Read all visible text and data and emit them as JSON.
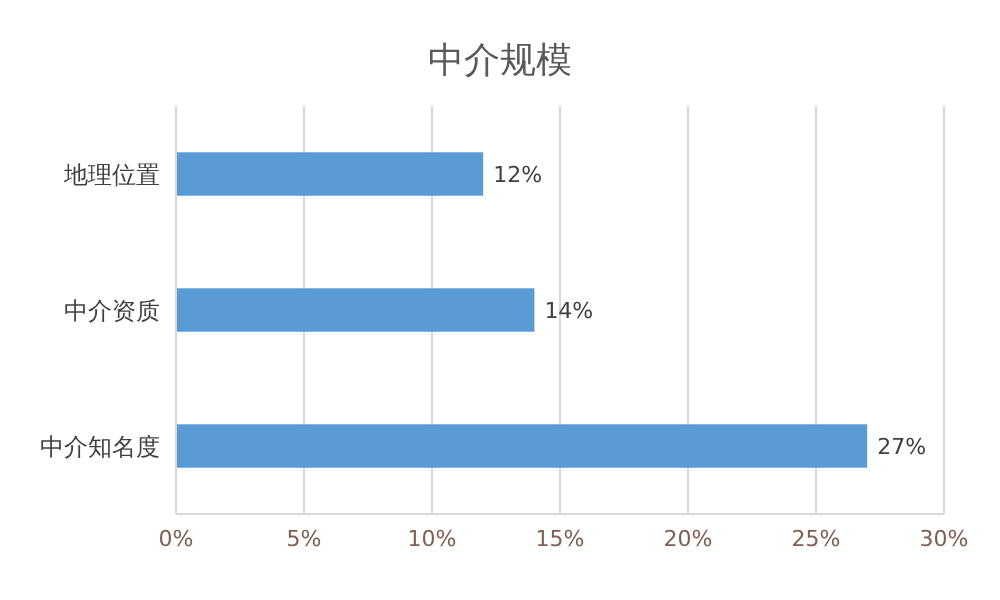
{
  "chart_data": {
    "type": "bar",
    "orientation": "horizontal",
    "title": "中介规模",
    "categories": [
      "地理位置",
      "中介资质",
      "中介知名度"
    ],
    "values": [
      12,
      14,
      27
    ],
    "color": "#5b9bd5",
    "value_labels": [
      "12%",
      "14%",
      "27%"
    ],
    "xlim": [
      0,
      30
    ],
    "xticks": [
      {
        "value": 0,
        "label": "0%"
      },
      {
        "value": 5,
        "label": "5%"
      },
      {
        "value": 10,
        "label": "10%"
      },
      {
        "value": 15,
        "label": "15%"
      },
      {
        "value": 20,
        "label": "20%"
      },
      {
        "value": 25,
        "label": "25%"
      },
      {
        "value": 30,
        "label": "30%"
      }
    ],
    "grid": "x"
  }
}
